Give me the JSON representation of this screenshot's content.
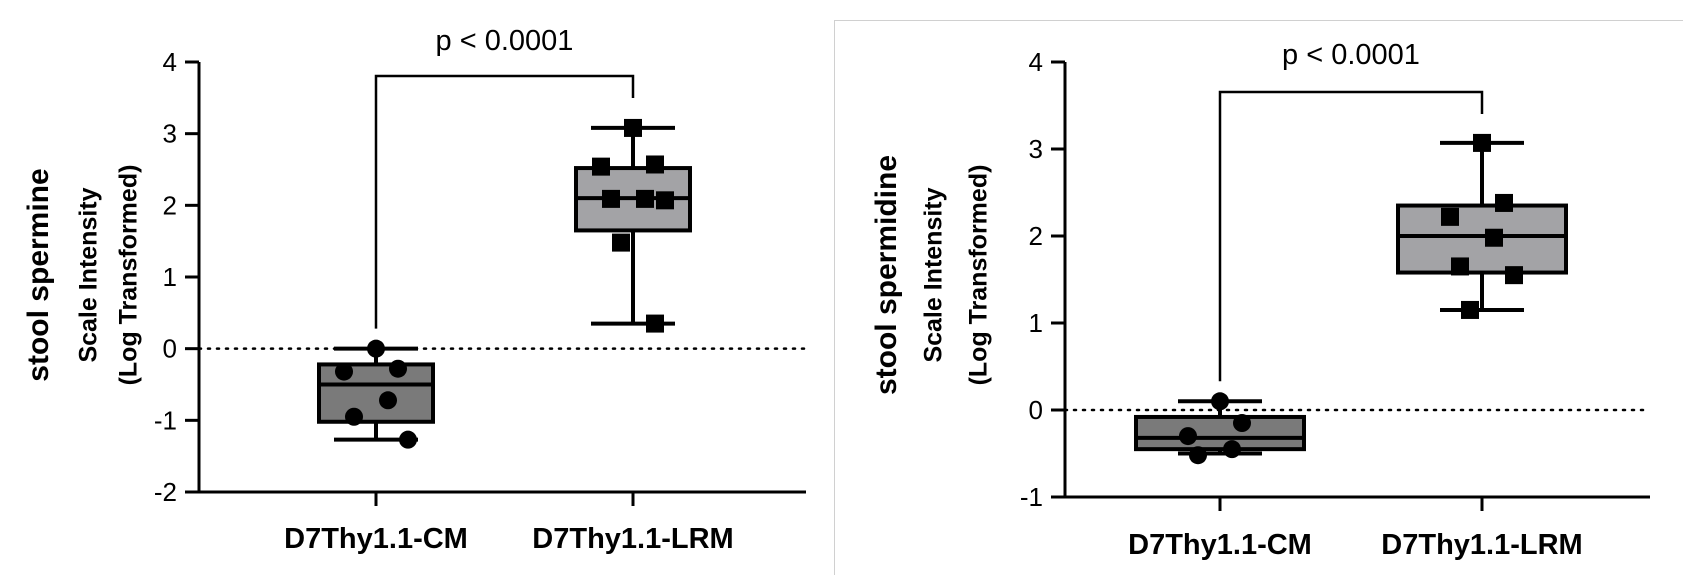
{
  "charts": [
    {
      "type": "box",
      "ylabel": [
        "stool spermine",
        "Scale Intensity",
        "(Log Transformed)"
      ],
      "ylim": [
        -2,
        4
      ],
      "yticks": [
        -2,
        -1,
        0,
        1,
        2,
        3,
        4
      ],
      "ytick_labels": [
        "-2",
        "-1",
        "0",
        "1",
        "2",
        "3",
        "4"
      ],
      "reference_line": 0,
      "annotation": "p < 0.0001",
      "categories": [
        "D7Thy1.1-CM",
        "D7Thy1.1-LRM"
      ],
      "groups": [
        {
          "name": "D7Thy1.1-CM",
          "min": -1.27,
          "q1": -1.02,
          "median": -0.5,
          "q3": -0.22,
          "max": 0.0,
          "fill": "#7a7a7a",
          "marker": "circle",
          "points": [
            0.0,
            -0.28,
            -0.32,
            -0.72,
            -0.95,
            -1.27
          ]
        },
        {
          "name": "D7Thy1.1-LRM",
          "min": 0.35,
          "q1": 1.65,
          "median": 2.1,
          "q3": 2.52,
          "max": 3.08,
          "fill": "#a3a3a6",
          "marker": "square",
          "points": [
            3.08,
            2.57,
            2.54,
            2.09,
            2.09,
            2.07,
            1.48,
            0.35
          ]
        }
      ]
    },
    {
      "type": "box",
      "ylabel": [
        "stool spermidine",
        "Scale Intensity",
        "(Log Transformed)"
      ],
      "ylim": [
        -1,
        4
      ],
      "yticks": [
        -1,
        0,
        1,
        2,
        3,
        4
      ],
      "ytick_labels": [
        "-1",
        "0",
        "1",
        "2",
        "3",
        "4"
      ],
      "reference_line": 0,
      "annotation": "p < 0.0001",
      "categories": [
        "D7Thy1.1-CM",
        "D7Thy1.1-LRM"
      ],
      "groups": [
        {
          "name": "D7Thy1.1-CM",
          "min": -0.5,
          "q1": -0.45,
          "median": -0.32,
          "q3": -0.08,
          "max": 0.1,
          "fill": "#7a7a7a",
          "marker": "circle",
          "points": [
            0.1,
            -0.15,
            -0.3,
            -0.45,
            -0.52
          ]
        },
        {
          "name": "D7Thy1.1-LRM",
          "min": 1.15,
          "q1": 1.58,
          "median": 2.0,
          "q3": 2.35,
          "max": 3.07,
          "fill": "#a3a3a6",
          "marker": "square",
          "points": [
            3.07,
            2.38,
            2.22,
            1.98,
            1.65,
            1.55,
            1.15
          ]
        }
      ]
    }
  ],
  "chart_data": [
    {
      "type": "box",
      "title": "",
      "ylabel": "stool spermine Scale Intensity (Log Transformed)",
      "categories": [
        "D7Thy1.1-CM",
        "D7Thy1.1-LRM"
      ],
      "ylim": [
        -2,
        4
      ],
      "annotation": "p < 0.0001",
      "series": [
        {
          "values": [
            -1.27,
            -1.02,
            -0.5,
            -0.22,
            0.0
          ]
        },
        {
          "values": [
            0.35,
            1.65,
            2.1,
            2.52,
            3.08
          ]
        }
      ]
    },
    {
      "type": "box",
      "title": "",
      "ylabel": "stool spermidine Scale Intensity (Log Transformed)",
      "categories": [
        "D7Thy1.1-CM",
        "D7Thy1.1-LRM"
      ],
      "ylim": [
        -1,
        4
      ],
      "annotation": "p < 0.0001",
      "series": [
        {
          "values": [
            -0.5,
            -0.45,
            -0.32,
            -0.08,
            0.1
          ]
        },
        {
          "values": [
            1.15,
            1.58,
            2.0,
            2.35,
            3.07
          ]
        }
      ]
    }
  ]
}
